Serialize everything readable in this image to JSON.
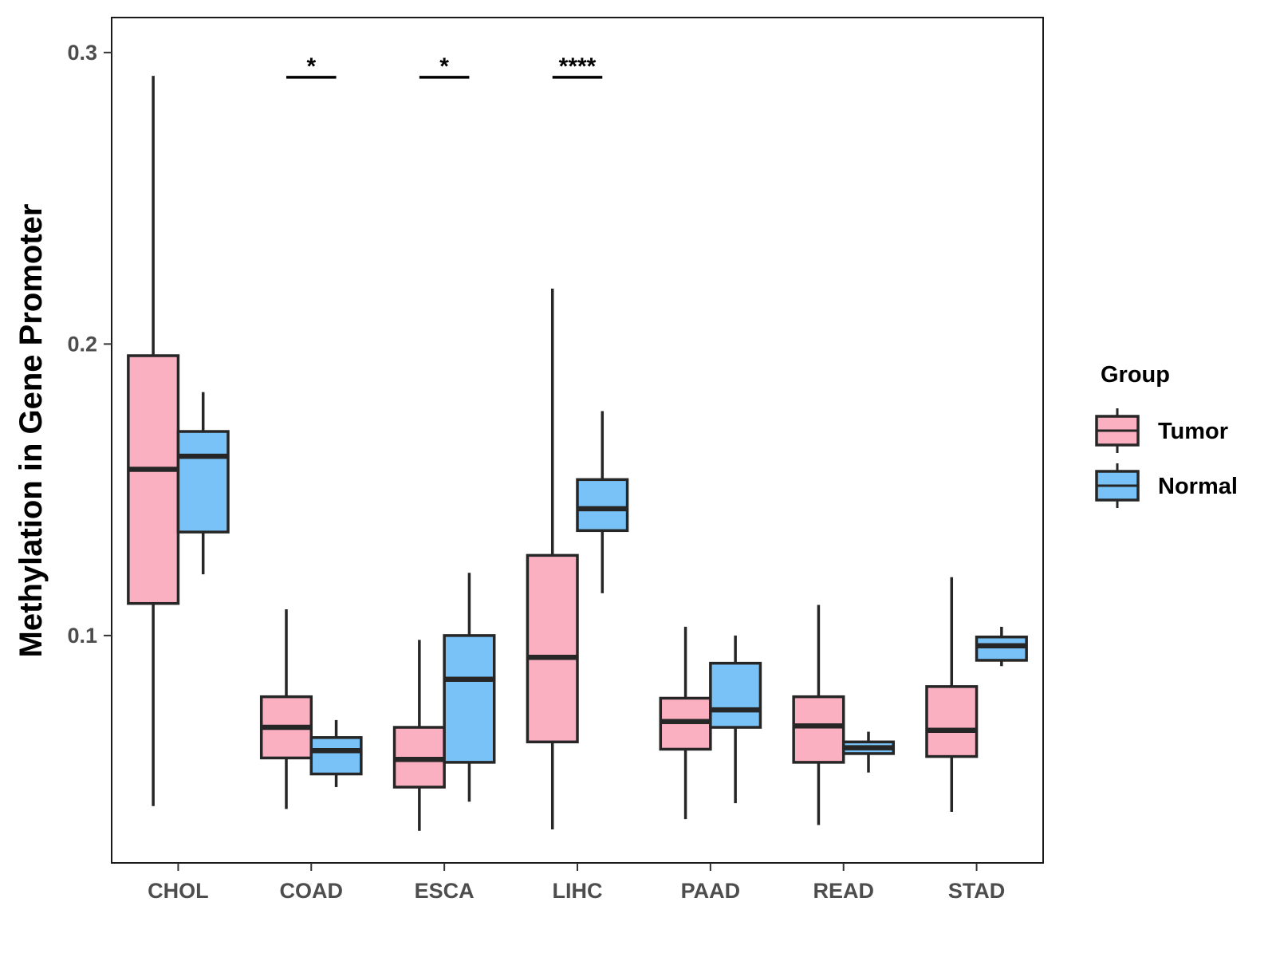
{
  "chart_data": {
    "type": "boxplot",
    "title": "",
    "xlabel": "",
    "ylabel": "Methylation in Gene Promoter",
    "ylim": [
      0.022,
      0.312
    ],
    "yticks": [
      0.1,
      0.2,
      0.3
    ],
    "ytick_labels": [
      "0.1",
      "0.2",
      "0.3"
    ],
    "categories": [
      "CHOL",
      "COAD",
      "ESCA",
      "LIHC",
      "PAAD",
      "READ",
      "STAD"
    ],
    "legend": {
      "title": "Group",
      "position": "right",
      "entries": [
        {
          "name": "Tumor",
          "color": "#FBB0C2"
        },
        {
          "name": "Normal",
          "color": "#79C2F7"
        }
      ]
    },
    "series": [
      {
        "name": "Tumor",
        "color": "#FBB0C2",
        "boxes": [
          {
            "min": 0.0415,
            "q1": 0.111,
            "median": 0.157,
            "q3": 0.196,
            "max": 0.292
          },
          {
            "min": 0.0405,
            "q1": 0.058,
            "median": 0.0685,
            "q3": 0.079,
            "max": 0.109
          },
          {
            "min": 0.033,
            "q1": 0.048,
            "median": 0.0575,
            "q3": 0.0685,
            "max": 0.0985
          },
          {
            "min": 0.0335,
            "q1": 0.0635,
            "median": 0.0925,
            "q3": 0.1275,
            "max": 0.219
          },
          {
            "min": 0.037,
            "q1": 0.061,
            "median": 0.0705,
            "q3": 0.0785,
            "max": 0.103
          },
          {
            "min": 0.035,
            "q1": 0.0565,
            "median": 0.069,
            "q3": 0.079,
            "max": 0.1105
          },
          {
            "min": 0.0395,
            "q1": 0.0585,
            "median": 0.0675,
            "q3": 0.0825,
            "max": 0.12
          }
        ]
      },
      {
        "name": "Normal",
        "color": "#79C2F7",
        "boxes": [
          {
            "min": 0.121,
            "q1": 0.1355,
            "median": 0.1615,
            "q3": 0.17,
            "max": 0.1835
          },
          {
            "min": 0.048,
            "q1": 0.0525,
            "median": 0.0605,
            "q3": 0.065,
            "max": 0.071
          },
          {
            "min": 0.043,
            "q1": 0.0565,
            "median": 0.085,
            "q3": 0.1,
            "max": 0.1215
          },
          {
            "min": 0.1145,
            "q1": 0.136,
            "median": 0.1435,
            "q3": 0.1535,
            "max": 0.177
          },
          {
            "min": 0.0425,
            "q1": 0.0685,
            "median": 0.0745,
            "q3": 0.0905,
            "max": 0.1
          },
          {
            "min": 0.053,
            "q1": 0.0595,
            "median": 0.0615,
            "q3": 0.0635,
            "max": 0.067
          },
          {
            "min": 0.0895,
            "q1": 0.0915,
            "median": 0.0965,
            "q3": 0.0995,
            "max": 0.103
          }
        ]
      }
    ],
    "significance": [
      {
        "category": "COAD",
        "label": "*",
        "y": 0.2915
      },
      {
        "category": "ESCA",
        "label": "*",
        "y": 0.2915
      },
      {
        "category": "LIHC",
        "label": "****",
        "y": 0.2915
      }
    ],
    "grid": false
  }
}
